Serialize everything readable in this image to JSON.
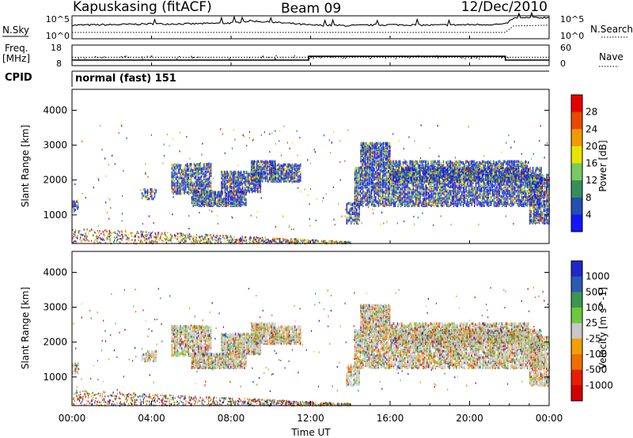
{
  "header": {
    "station": "Kapuskasing (fitACF)",
    "beam": "Beam 09",
    "date": "12/Dec/2010"
  },
  "chart_data": [
    {
      "id": "noise-panel",
      "type": "line",
      "left_label": "N.Sky",
      "right_label": "N.Search",
      "yticks_left": [
        "10^5",
        "10^0"
      ],
      "yticks_right": [
        "10^5",
        "10^0"
      ],
      "x_range_hours": [
        0,
        24
      ],
      "series": [
        {
          "style": "solid",
          "x": [
            0,
            2,
            4,
            6,
            8,
            9,
            10,
            11,
            12,
            14,
            16,
            18,
            20,
            21.8,
            22.2,
            24
          ],
          "y": [
            3.0,
            3.1,
            3.3,
            3.3,
            3.5,
            4.0,
            3.7,
            3.4,
            3.0,
            2.9,
            3.1,
            3.0,
            3.1,
            3.2,
            4.6,
            4.8
          ]
        },
        {
          "style": "dotted",
          "x": [
            0,
            6,
            12,
            18,
            21.8,
            22.2,
            24
          ],
          "y": [
            1.3,
            1.3,
            1.3,
            1.3,
            1.3,
            2.8,
            3.0
          ]
        }
      ]
    },
    {
      "id": "freq-panel",
      "type": "line",
      "left_label_top": "Freq.",
      "left_label_bottom": "[MHz]",
      "right_label": "Nave",
      "yticks_left": [
        "18",
        "8"
      ],
      "yticks_right": [
        "60",
        "0"
      ],
      "x_range_hours": [
        0,
        24
      ],
      "series": [
        {
          "style": "solid",
          "x": [
            0,
            11.9,
            11.9,
            21.8,
            21.8,
            24
          ],
          "y": [
            10.5,
            10.5,
            12.5,
            12.5,
            10.5,
            10.5
          ]
        },
        {
          "style": "dotted",
          "x": [
            0,
            24
          ],
          "y": [
            12.0,
            12.0
          ]
        }
      ]
    },
    {
      "id": "cpid-panel",
      "type": "table",
      "label": "CPID",
      "text": "normal (fast) 151"
    },
    {
      "id": "power-panel",
      "type": "heatmap",
      "ylabel": "Slant Range [km]",
      "ylim": [
        180,
        4600
      ],
      "yticks": [
        "1000",
        "2000",
        "3000",
        "4000"
      ],
      "x_range_hours": [
        0,
        24
      ],
      "colorbar": {
        "label": "Power [dB]",
        "ticks": [
          "4",
          "8",
          "12",
          "16",
          "20",
          "24",
          "28"
        ],
        "colors": [
          "#1414ff",
          "#2050b0",
          "#3a8c5a",
          "#78c864",
          "#e6e600",
          "#f09a00",
          "#e84a00",
          "#e60000"
        ]
      }
    },
    {
      "id": "velocity-panel",
      "type": "heatmap",
      "ylabel": "Slant Range [km]",
      "ylim": [
        180,
        4600
      ],
      "yticks": [
        "1000",
        "2000",
        "3000",
        "4000"
      ],
      "x_range_hours": [
        0,
        24
      ],
      "xticks": [
        "00:00",
        "04:00",
        "08:00",
        "12:00",
        "16:00",
        "20:00",
        "00:00"
      ],
      "xlabel": "Time UT",
      "colorbar": {
        "label": "Velocity [m s^-1]",
        "ticks": [
          "1000",
          "500",
          "100",
          "25",
          "-25",
          "-100",
          "-500",
          "-1000"
        ],
        "colors": [
          "#1e28c8",
          "#2a5ab4",
          "#3c9650",
          "#6ec83c",
          "#c8c8c8",
          "#f0a000",
          "#f06e00",
          "#e61e00",
          "#d20000"
        ]
      }
    }
  ]
}
